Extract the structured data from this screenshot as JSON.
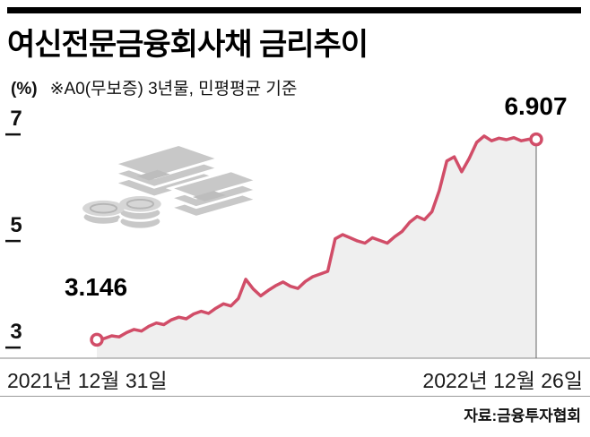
{
  "header": {
    "title": "여신전문금융회사채 금리추이",
    "unit_label": "(%)",
    "subtitle": "※A0(무보증) 3년물, 민평평균 기준"
  },
  "footer": {
    "source": "자료:금융투자협회"
  },
  "chart_data": {
    "type": "line",
    "title": "여신전문금융회사채 금리추이",
    "ylabel": "%",
    "yticks": [
      3,
      5,
      7
    ],
    "ylim": [
      2.8,
      7.3
    ],
    "grid": "off",
    "x_start_label": "2021년 12월 31일",
    "x_end_label": "2022년 12월 26일",
    "start_point": {
      "x_label": "2021년 12월 31일",
      "value": 3.146,
      "display": "3.146"
    },
    "end_point": {
      "x_label": "2022년 12월 26일",
      "value": 6.907,
      "display": "6.907"
    },
    "line_color": "#d14d68",
    "area_color": "#efefef",
    "marker_fill": "#ffffff",
    "values": [
      3.146,
      3.17,
      3.22,
      3.2,
      3.28,
      3.34,
      3.31,
      3.4,
      3.46,
      3.43,
      3.52,
      3.57,
      3.54,
      3.63,
      3.68,
      3.64,
      3.74,
      3.82,
      3.78,
      3.92,
      4.28,
      4.1,
      3.97,
      4.07,
      4.16,
      4.23,
      4.15,
      4.11,
      4.24,
      4.33,
      4.38,
      4.43,
      5.04,
      5.12,
      5.06,
      5.0,
      4.96,
      5.06,
      5.01,
      4.96,
      5.08,
      5.18,
      5.35,
      5.46,
      5.4,
      5.55,
      5.95,
      6.5,
      6.58,
      6.3,
      6.55,
      6.85,
      6.97,
      6.88,
      6.93,
      6.9,
      6.94,
      6.88,
      6.91,
      6.907
    ]
  }
}
